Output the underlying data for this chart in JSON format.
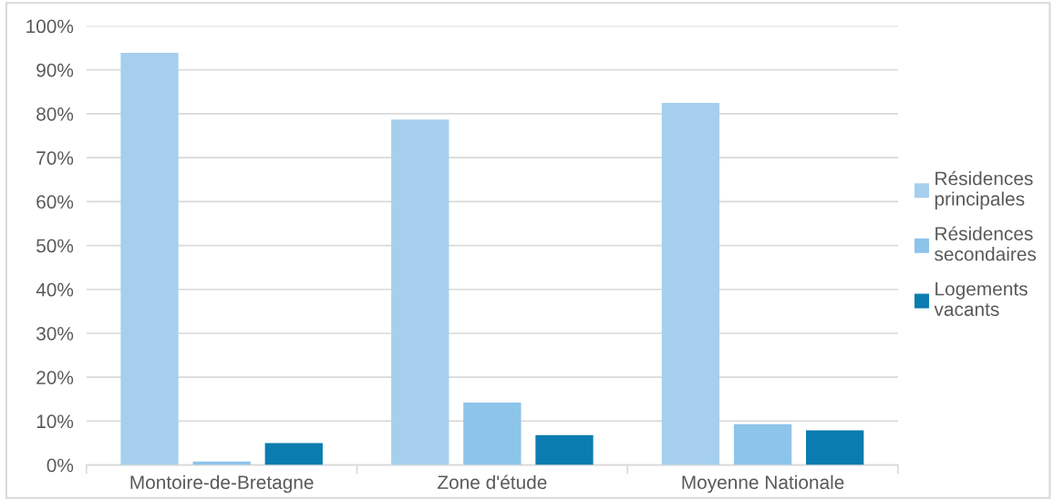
{
  "chart_data": {
    "type": "bar",
    "categories": [
      "Montoire-de-Bretagne",
      "Zone d'étude",
      "Moyenne Nationale"
    ],
    "series": [
      {
        "name": "Résidences principales",
        "color": "#a6cfee",
        "values": [
          93.9,
          78.7,
          82.5
        ]
      },
      {
        "name": "Résidences secondaires",
        "color": "#8dc4ea",
        "values": [
          0.8,
          14.2,
          9.3
        ]
      },
      {
        "name": "Logements vacants",
        "color": "#0a7caf",
        "values": [
          5.0,
          6.8,
          7.9
        ]
      }
    ],
    "ylim": [
      0,
      100
    ],
    "yticks": [
      {
        "value": 0,
        "label": "0%"
      },
      {
        "value": 10,
        "label": "10%"
      },
      {
        "value": 20,
        "label": "20%"
      },
      {
        "value": 30,
        "label": "30%"
      },
      {
        "value": 40,
        "label": "40%"
      },
      {
        "value": 50,
        "label": "50%"
      },
      {
        "value": 60,
        "label": "60%"
      },
      {
        "value": 70,
        "label": "70%"
      },
      {
        "value": 80,
        "label": "80%"
      },
      {
        "value": 90,
        "label": "90%"
      },
      {
        "value": 100,
        "label": "100%"
      }
    ],
    "grid": "y",
    "legend": "right"
  }
}
